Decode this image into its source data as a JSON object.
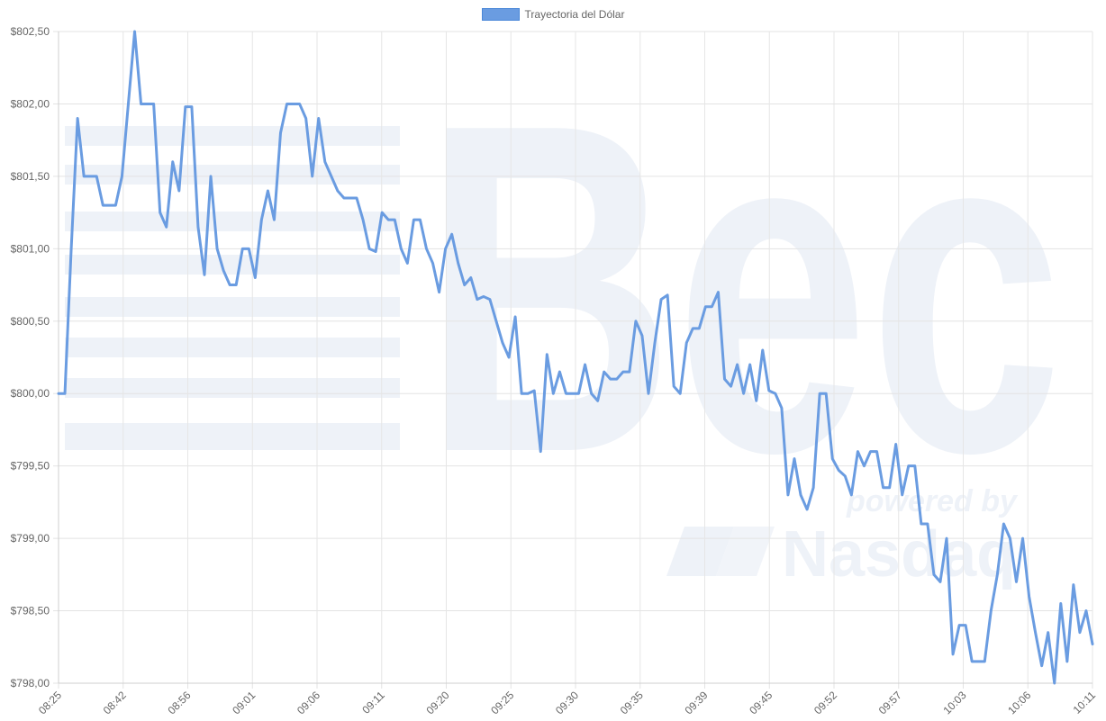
{
  "chart_data": {
    "type": "line",
    "legend_position": "top-center",
    "grid": true,
    "series": [
      {
        "name": "Trayectoria del Dólar",
        "color": "#6a9ce1",
        "values": [
          800.0,
          800.0,
          801.0,
          801.9,
          801.5,
          801.5,
          801.5,
          801.3,
          801.3,
          801.3,
          801.5,
          802.0,
          802.5,
          802.0,
          802.0,
          802.0,
          801.25,
          801.15,
          801.6,
          801.4,
          801.98,
          801.98,
          801.15,
          800.82,
          801.5,
          801.0,
          800.85,
          800.75,
          800.75,
          801.0,
          801.0,
          800.8,
          801.2,
          801.4,
          801.2,
          801.8,
          802.0,
          802.0,
          802.0,
          801.9,
          801.5,
          801.9,
          801.6,
          801.5,
          801.4,
          801.35,
          801.35,
          801.35,
          801.2,
          801.0,
          800.98,
          801.25,
          801.2,
          801.2,
          801.0,
          800.9,
          801.2,
          801.2,
          801.0,
          800.9,
          800.7,
          801.0,
          801.1,
          800.9,
          800.75,
          800.8,
          800.65,
          800.67,
          800.65,
          800.5,
          800.35,
          800.25,
          800.53,
          800.0,
          800.0,
          800.02,
          799.6,
          800.27,
          800.0,
          800.15,
          800.0,
          800.0,
          800.0,
          800.2,
          800.0,
          799.95,
          800.15,
          800.1,
          800.1,
          800.15,
          800.15,
          800.5,
          800.4,
          800.0,
          800.35,
          800.65,
          800.68,
          800.05,
          800.0,
          800.35,
          800.45,
          800.45,
          800.6,
          800.6,
          800.7,
          800.1,
          800.05,
          800.2,
          800.0,
          800.2,
          799.95,
          800.3,
          800.02,
          800.0,
          799.9,
          799.3,
          799.55,
          799.3,
          799.2,
          799.35,
          800.0,
          800.0,
          799.55,
          799.47,
          799.43,
          799.3,
          799.6,
          799.5,
          799.6,
          799.6,
          799.35,
          799.35,
          799.65,
          799.3,
          799.5,
          799.5,
          799.1,
          799.1,
          798.75,
          798.7,
          799.0,
          798.2,
          798.4,
          798.4,
          798.15,
          798.15,
          798.15,
          798.5,
          798.75,
          799.1,
          799.0,
          798.7,
          799.0,
          798.6,
          798.35,
          798.12,
          798.35,
          798.0,
          798.55,
          798.15,
          798.68,
          798.35,
          798.5,
          798.27
        ]
      }
    ],
    "y_axis": {
      "min": 798.0,
      "max": 802.5,
      "ticks": [
        "$798,00",
        "$798,50",
        "$799,00",
        "$799,50",
        "$800,00",
        "$800,50",
        "$801,00",
        "$801,50",
        "$802,00",
        "$802,50"
      ]
    },
    "x_axis": {
      "ticks": [
        "08:25",
        "08:42",
        "08:56",
        "09:01",
        "09:06",
        "09:11",
        "09:20",
        "09:25",
        "09:30",
        "09:35",
        "09:39",
        "09:45",
        "09:52",
        "09:57",
        "10:03",
        "10:06",
        "10:11"
      ]
    },
    "watermark": {
      "brand": "Bec",
      "subtext": "powered by",
      "partner": "Nasdaq"
    }
  }
}
